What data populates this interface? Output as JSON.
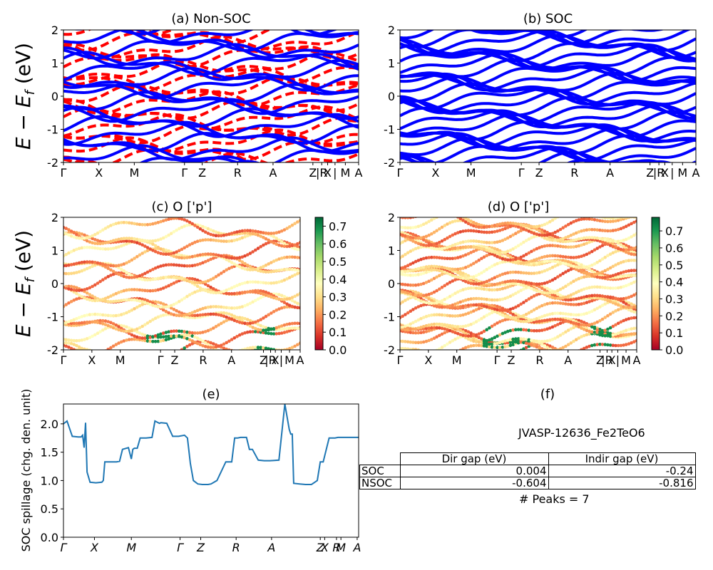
{
  "ylabel_energy": "E − E",
  "ylabel_energy_sub": "f",
  "ylabel_energy_unit": " (eV)",
  "kpath_labels": [
    "Γ",
    "X",
    "M",
    "Γ",
    "Z",
    "R",
    "A",
    "Z",
    "|R",
    "X",
    "|",
    "M",
    "A"
  ],
  "chart_data": [
    {
      "id": "a",
      "type": "line",
      "title": "(a) Non-SOC",
      "ylim": [
        -2,
        2
      ],
      "yticks": [
        -2,
        -1,
        0,
        1,
        2
      ],
      "series_colors": [
        "#0000ff",
        "#ff0000"
      ],
      "series_styles": [
        "solid",
        "dashed"
      ]
    },
    {
      "id": "b",
      "type": "line",
      "title": "(b) SOC",
      "ylim": [
        -2,
        2
      ],
      "yticks": [
        -2,
        -1,
        0,
        1,
        2
      ],
      "series_colors": [
        "#0000ff"
      ],
      "series_styles": [
        "solid"
      ]
    },
    {
      "id": "c",
      "type": "scatter",
      "title": "(c)  O ['p']",
      "ylim": [
        -2,
        2
      ],
      "yticks": [
        -2,
        -1,
        0,
        1,
        2
      ],
      "colorbar": {
        "colormap": "RdYlGn",
        "range": [
          0.0,
          0.75
        ],
        "ticks": [
          "0.0",
          "0.1",
          "0.2",
          "0.3",
          "0.4",
          "0.5",
          "0.6",
          "0.7"
        ]
      }
    },
    {
      "id": "d",
      "type": "scatter",
      "title": "(d) O ['p']",
      "ylim": [
        -2,
        2
      ],
      "yticks": [
        -2,
        -1,
        0,
        1,
        2
      ],
      "colorbar": {
        "colormap": "RdYlGn",
        "range": [
          0.0,
          0.78
        ],
        "ticks": [
          "0.0",
          "0.1",
          "0.2",
          "0.3",
          "0.4",
          "0.5",
          "0.6",
          "0.7"
        ]
      }
    },
    {
      "id": "e",
      "type": "line",
      "title": "(e)",
      "ylabel": "SOC spillage (chg. den. unit)",
      "ylim": [
        0,
        2.35
      ],
      "yticks": [
        "0.0",
        "0.5",
        "1.0",
        "1.5",
        "2.0"
      ],
      "xticklabels": [
        "Γ",
        "X",
        "M",
        "Γ",
        "Z",
        "R",
        "A",
        "Z",
        "X",
        "R",
        "M",
        "A"
      ],
      "color": "#1f77b4",
      "x": [
        0.0,
        0.012,
        0.03,
        0.05,
        0.06,
        0.065,
        0.07,
        0.075,
        0.08,
        0.09,
        0.11,
        0.13,
        0.135,
        0.14,
        0.145,
        0.16,
        0.17,
        0.18,
        0.19,
        0.2,
        0.22,
        0.23,
        0.235,
        0.24,
        0.25,
        0.26,
        0.28,
        0.3,
        0.31,
        0.325,
        0.33,
        0.35,
        0.37,
        0.39,
        0.41,
        0.42,
        0.43,
        0.44,
        0.455,
        0.47,
        0.48,
        0.49,
        0.5,
        0.52,
        0.55,
        0.57,
        0.58,
        0.59,
        0.6,
        0.62,
        0.63,
        0.64,
        0.66,
        0.68,
        0.69,
        0.7,
        0.73,
        0.75,
        0.765,
        0.77,
        0.775,
        0.78,
        0.8,
        0.82,
        0.84,
        0.86,
        0.87,
        0.88,
        0.9,
        0.92,
        0.93,
        0.94,
        1.0
      ],
      "values": [
        2.0,
        2.05,
        1.78,
        1.77,
        1.77,
        1.8,
        1.58,
        2.02,
        1.15,
        0.97,
        0.96,
        0.97,
        1.0,
        1.33,
        1.33,
        1.33,
        1.33,
        1.33,
        1.34,
        1.55,
        1.58,
        1.38,
        1.55,
        1.57,
        1.57,
        1.75,
        1.75,
        1.76,
        2.05,
        2.01,
        2.02,
        2.01,
        1.78,
        1.78,
        1.8,
        1.75,
        1.3,
        1.0,
        0.94,
        0.93,
        0.93,
        0.93,
        0.94,
        1.0,
        1.33,
        1.33,
        1.75,
        1.75,
        1.76,
        1.76,
        1.55,
        1.55,
        1.36,
        1.35,
        1.35,
        1.35,
        1.36,
        2.35,
        1.9,
        1.82,
        1.82,
        0.95,
        0.94,
        0.93,
        0.93,
        1.0,
        1.33,
        1.33,
        1.75,
        1.75,
        1.76,
        1.76,
        1.76
      ]
    }
  ],
  "table": {
    "panel_title": "(f)",
    "title": "JVASP-12636_Fe2TeO6",
    "columns": [
      "Dir gap (eV)",
      "Indir gap (eV)"
    ],
    "rows": [
      {
        "label": "SOC",
        "dir": "0.004",
        "indir": "-0.24"
      },
      {
        "label": "NSOC",
        "dir": "-0.604",
        "indir": "-0.816"
      }
    ],
    "peaks": "# Peaks = 7"
  }
}
